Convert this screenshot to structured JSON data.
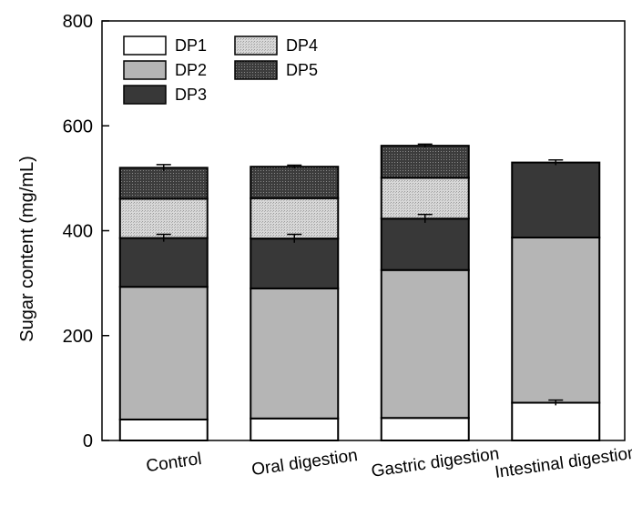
{
  "chart_data": {
    "type": "bar",
    "stacked": true,
    "title": "",
    "xlabel": "",
    "ylabel": "Sugar content (mg/mL)",
    "ylim": [
      0,
      800
    ],
    "yticks": [
      0,
      200,
      400,
      600,
      800
    ],
    "categories": [
      "Control",
      "Oral digestion",
      "Gastric digestion",
      "Intestinal digestion"
    ],
    "series": [
      {
        "name": "DP1",
        "values": [
          40,
          42,
          43,
          72
        ],
        "fill": "#ffffff"
      },
      {
        "name": "DP2",
        "values": [
          253,
          248,
          282,
          315
        ],
        "fill": "#b5b5b5"
      },
      {
        "name": "DP3",
        "values": [
          93,
          95,
          98,
          143
        ],
        "fill": "#383838"
      },
      {
        "name": "DP4",
        "values": [
          75,
          77,
          78,
          0
        ],
        "fill": "#d6d6d6"
      },
      {
        "name": "DP5",
        "values": [
          59,
          60,
          61,
          0
        ],
        "fill": "#4a4a4a"
      }
    ],
    "error_bars": [
      {
        "category": "Control",
        "series": "DP3",
        "error": 7
      },
      {
        "category": "Control",
        "series": "DP5",
        "error": 6
      },
      {
        "category": "Oral digestion",
        "series": "DP3",
        "error": 8
      },
      {
        "category": "Oral digestion",
        "series": "DP5",
        "error": 3
      },
      {
        "category": "Gastric digestion",
        "series": "DP3",
        "error": 8
      },
      {
        "category": "Gastric digestion",
        "series": "DP5",
        "error": 3
      },
      {
        "category": "Intestinal digestion",
        "series": "DP1",
        "error": 5
      },
      {
        "category": "Intestinal digestion",
        "series": "DP3",
        "error": 5
      }
    ],
    "legend": {
      "placement": "top-left",
      "columns": 2
    },
    "grid": false
  }
}
